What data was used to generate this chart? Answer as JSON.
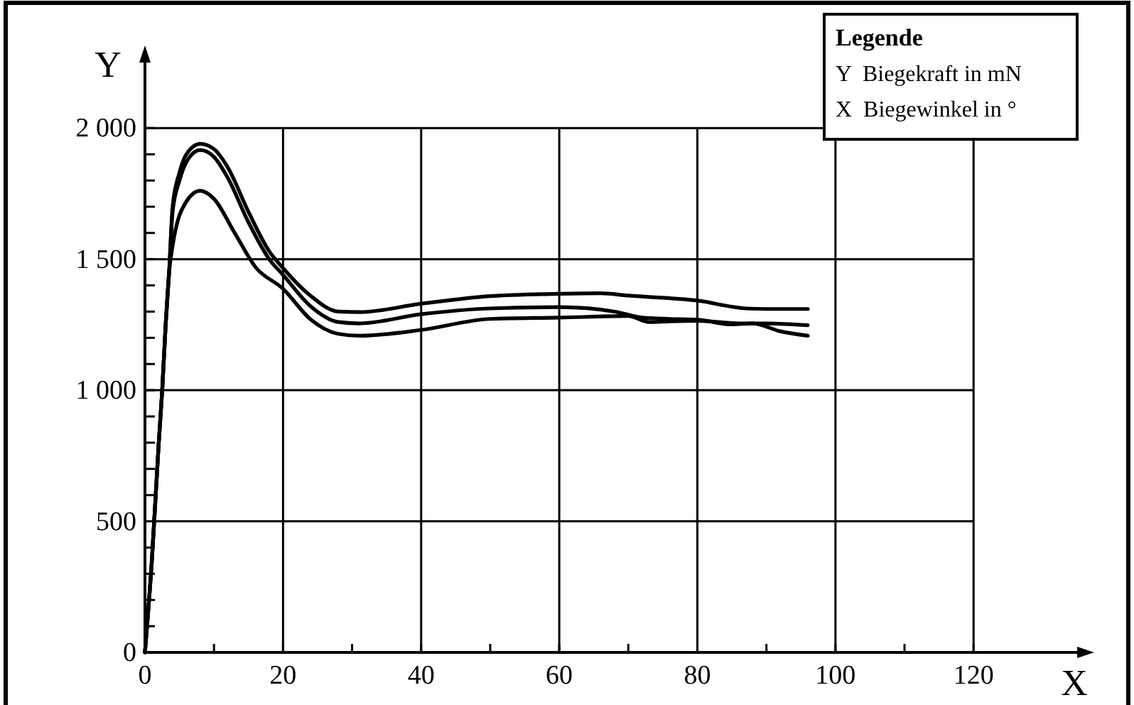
{
  "chart_data": {
    "type": "line",
    "xlabel": "X",
    "ylabel": "Y",
    "annotations": [
      "Legende",
      "Y  Biegekraft in mN",
      "X  Biegewinkel in °"
    ],
    "xlim": [
      0,
      135
    ],
    "ylim": [
      0,
      2250
    ],
    "xticks": [
      0,
      {
        "value": 10,
        "label": null
      },
      20,
      {
        "value": 30,
        "label": null
      },
      40,
      {
        "value": 50,
        "label": null
      },
      60,
      {
        "value": 70,
        "label": null
      },
      80,
      {
        "value": 90,
        "label": null
      },
      100,
      {
        "value": 110,
        "label": null
      },
      120
    ],
    "yticks": [
      {
        "value": 0,
        "label": "0"
      },
      {
        "value": 100,
        "label": null
      },
      {
        "value": 200,
        "label": null
      },
      {
        "value": 300,
        "label": null
      },
      {
        "value": 400,
        "label": null
      },
      500,
      {
        "value": 600,
        "label": null
      },
      {
        "value": 700,
        "label": null
      },
      {
        "value": 800,
        "label": null
      },
      {
        "value": 900,
        "label": null
      },
      {
        "value": 1000,
        "label": "1 000"
      },
      {
        "value": 1100,
        "label": null
      },
      {
        "value": 1200,
        "label": null
      },
      {
        "value": 1300,
        "label": null
      },
      {
        "value": 1400,
        "label": null
      },
      {
        "value": 1500,
        "label": "1 500"
      },
      {
        "value": 1600,
        "label": null
      },
      {
        "value": 1700,
        "label": null
      },
      {
        "value": 1800,
        "label": null
      },
      {
        "value": 1900,
        "label": null
      },
      {
        "value": 2000,
        "label": "2 000"
      }
    ],
    "grid": true,
    "marker": "none",
    "line_style": "solid",
    "series": [
      {
        "color": "#000000",
        "x": [
          0,
          1,
          2,
          2.5,
          3,
          3.5,
          4,
          5,
          6,
          8,
          10,
          12,
          15,
          18,
          20,
          24,
          28,
          31,
          40,
          50,
          60,
          66,
          70,
          80,
          87,
          90,
          96
        ],
        "values": [
          0,
          350,
          800,
          1000,
          1250,
          1450,
          1700,
          1830,
          1900,
          1940,
          1920,
          1850,
          1680,
          1530,
          1466,
          1360,
          1300,
          1298,
          1330,
          1359,
          1368,
          1370,
          1361,
          1342,
          1312,
          1310,
          1310
        ]
      },
      {
        "color": "#000000",
        "x": [
          0,
          1,
          2,
          2.5,
          3,
          3.5,
          4,
          5,
          6,
          8,
          10,
          12,
          15,
          18,
          20,
          24,
          28,
          31,
          40,
          50,
          60,
          68,
          72,
          76,
          80,
          85,
          88,
          92,
          96
        ],
        "values": [
          0,
          350,
          800,
          1000,
          1250,
          1450,
          1680,
          1800,
          1870,
          1916,
          1890,
          1810,
          1640,
          1500,
          1440,
          1320,
          1260,
          1255,
          1290,
          1312,
          1317,
          1300,
          1277,
          1272,
          1269,
          1251,
          1255,
          1225,
          1208
        ]
      },
      {
        "color": "#000000",
        "x": [
          0,
          1,
          2,
          2.5,
          3,
          3.5,
          4,
          6,
          8,
          10,
          13,
          16,
          20,
          24,
          28,
          31,
          40,
          50,
          60,
          70,
          73,
          76,
          80,
          86,
          90,
          96
        ],
        "values": [
          0,
          350,
          800,
          1000,
          1250,
          1450,
          1550,
          1720,
          1761,
          1730,
          1600,
          1470,
          1387,
          1270,
          1215,
          1208,
          1230,
          1272,
          1277,
          1283,
          1260,
          1263,
          1265,
          1255,
          1255,
          1248
        ]
      }
    ]
  }
}
